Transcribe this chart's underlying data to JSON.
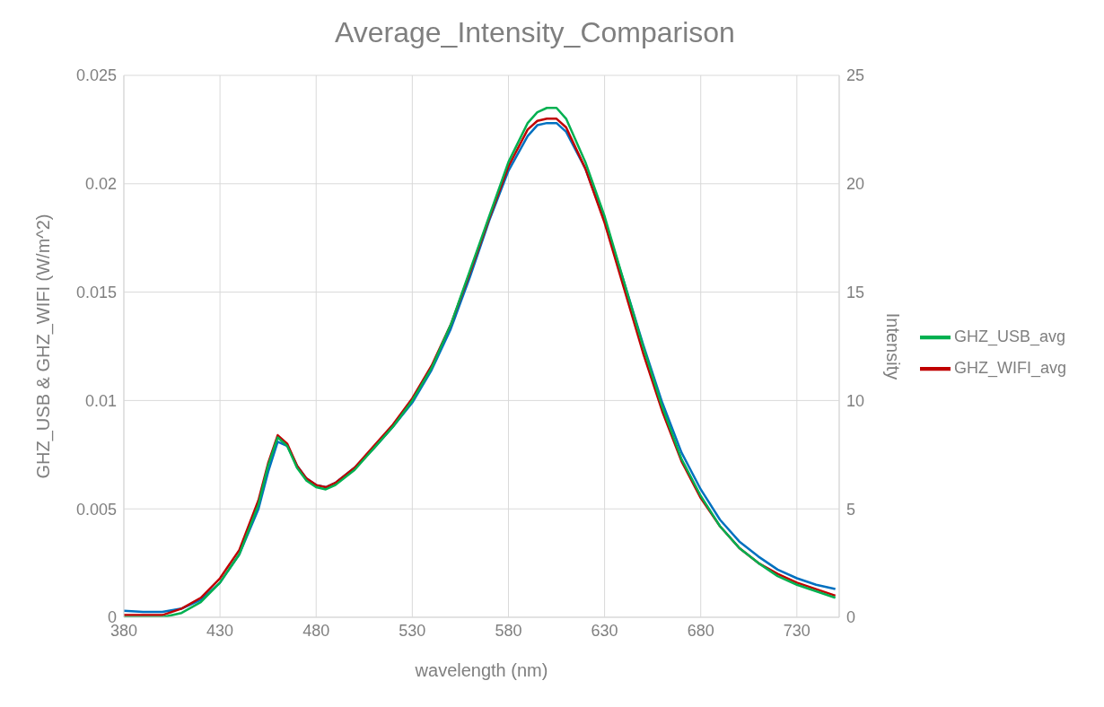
{
  "chart_data": {
    "type": "line",
    "title": "Average_Intensity_Comparison",
    "xlabel": "wavelength (nm)",
    "ylabel": "GHZ_USB & GHZ_WIFI (W/m^2)",
    "y2label": "Intensity",
    "x": [
      380,
      390,
      400,
      410,
      420,
      430,
      440,
      450,
      455,
      460,
      465,
      470,
      475,
      480,
      485,
      490,
      500,
      510,
      520,
      530,
      540,
      550,
      560,
      570,
      580,
      590,
      595,
      600,
      605,
      610,
      620,
      630,
      640,
      650,
      660,
      670,
      680,
      690,
      700,
      710,
      720,
      730,
      740,
      750
    ],
    "series": [
      {
        "name": "GHZ_USB_avg",
        "color": "#00b050",
        "values": [
          0,
          0,
          0,
          0.0002,
          0.0007,
          0.0016,
          0.0029,
          0.0052,
          0.007,
          0.0083,
          0.0079,
          0.0069,
          0.0063,
          0.006,
          0.0059,
          0.0061,
          0.0068,
          0.0078,
          0.0088,
          0.01,
          0.0115,
          0.0135,
          0.016,
          0.0185,
          0.021,
          0.0228,
          0.0233,
          0.0235,
          0.0235,
          0.023,
          0.021,
          0.0185,
          0.0155,
          0.0125,
          0.0097,
          0.0073,
          0.0056,
          0.0042,
          0.0032,
          0.0025,
          0.0019,
          0.0015,
          0.0012,
          0.0009
        ]
      },
      {
        "name": "GHZ_WIFI_avg",
        "color": "#c00000",
        "values": [
          0.0001,
          0.0001,
          0.0001,
          0.0004,
          0.0009,
          0.0018,
          0.0031,
          0.0054,
          0.0071,
          0.0084,
          0.008,
          0.007,
          0.0064,
          0.0061,
          0.006,
          0.0062,
          0.0069,
          0.0079,
          0.0089,
          0.0101,
          0.0116,
          0.0135,
          0.0159,
          0.0184,
          0.0208,
          0.0225,
          0.0229,
          0.023,
          0.023,
          0.0226,
          0.0207,
          0.0182,
          0.0152,
          0.0122,
          0.0095,
          0.0072,
          0.0055,
          0.0042,
          0.0032,
          0.0025,
          0.002,
          0.0016,
          0.0013,
          0.001
        ]
      },
      {
        "color": "#0070c0",
        "axis": "y2",
        "values": [
          0.3,
          0.25,
          0.25,
          0.4,
          0.8,
          1.6,
          2.9,
          5.0,
          6.7,
          8.1,
          7.9,
          7.0,
          6.4,
          6.1,
          6.0,
          6.2,
          6.9,
          7.8,
          8.8,
          9.9,
          11.4,
          13.3,
          15.7,
          18.3,
          20.6,
          22.2,
          22.7,
          22.8,
          22.8,
          22.4,
          20.7,
          18.3,
          15.5,
          12.6,
          9.9,
          7.6,
          5.9,
          4.5,
          3.5,
          2.8,
          2.2,
          1.8,
          1.5,
          1.3
        ]
      }
    ],
    "xlim": [
      380,
      752
    ],
    "xticks": [
      380,
      430,
      480,
      530,
      580,
      630,
      680,
      730
    ],
    "ylim": [
      0,
      0.025
    ],
    "yticks": [
      0,
      0.005,
      0.01,
      0.015,
      0.02,
      0.025
    ],
    "y2lim": [
      0,
      25
    ],
    "y2ticks": [
      0,
      5,
      10,
      15,
      20,
      25
    ],
    "grid": true,
    "legend": "right",
    "marker": "none",
    "line_style": "solid"
  }
}
